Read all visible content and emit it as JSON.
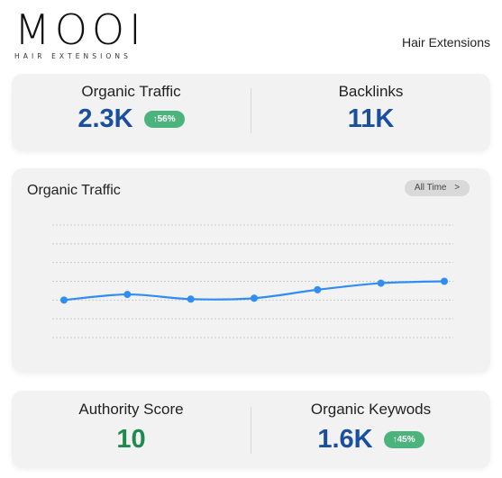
{
  "header": {
    "logo_main": "MOOI",
    "logo_sub": "HAIR EXTENSIONS",
    "brand_label": "Hair Extensions"
  },
  "top_metrics": {
    "organic_traffic": {
      "label": "Organic Traffic",
      "value": "2.3K",
      "badge": "↑56%"
    },
    "backlinks": {
      "label": "Backlinks",
      "value": "11K"
    }
  },
  "traffic_chart": {
    "title": "Organic Traffic",
    "range_button": "All Time",
    "range_chevron": ">",
    "chevron_icon": "chevron-right-icon"
  },
  "bottom_metrics": {
    "authority_score": {
      "label": "Authority Score",
      "value": "10"
    },
    "organic_keywords": {
      "label": "Organic Keywods",
      "value": "1.6K",
      "badge": "↑45%"
    }
  },
  "colors": {
    "value_blue": "#1a4fa0",
    "value_green": "#1e8a4f",
    "badge_green": "#4cb37c",
    "line_blue": "#2f8ef0"
  },
  "chart_data": {
    "type": "line",
    "title": "Organic Traffic",
    "xlabel": "",
    "ylabel": "",
    "x": [
      1,
      2,
      3,
      4,
      5,
      6,
      7
    ],
    "series": [
      {
        "values": [
          2.0,
          2.3,
          2.05,
          2.1,
          2.55,
          2.9,
          3.0
        ]
      }
    ],
    "ylim": [
      0,
      6
    ],
    "grid": true,
    "gridlines": 7
  }
}
